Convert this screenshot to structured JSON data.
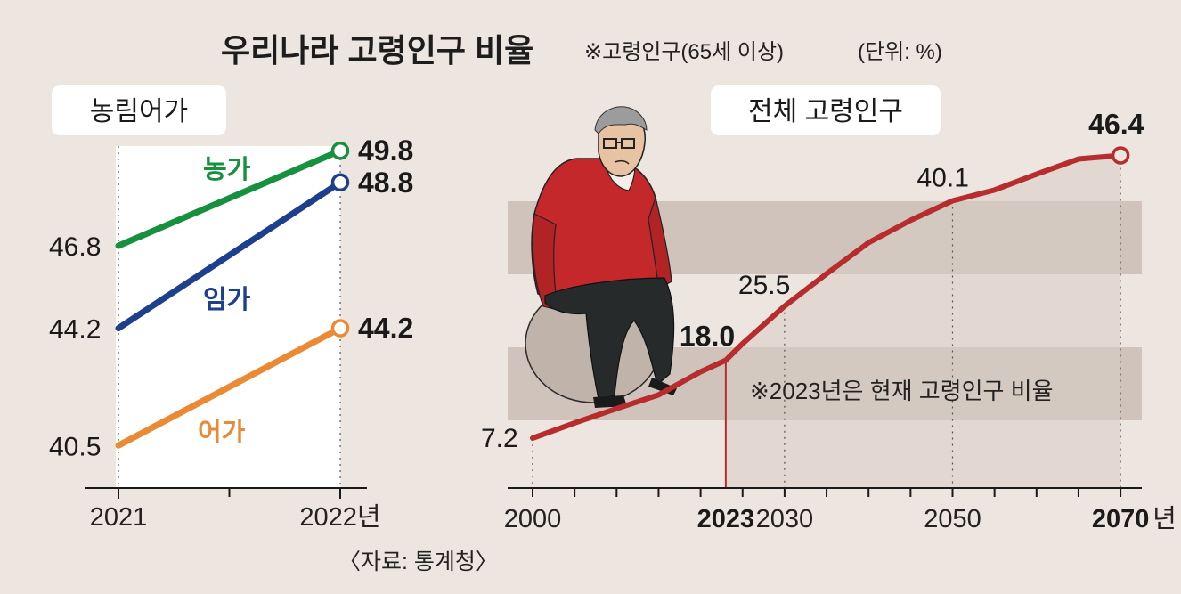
{
  "header": {
    "title": "우리나라 고령인구 비율",
    "note": "※고령인구(65세 이상)",
    "unit": "(단위: %)"
  },
  "source": "〈자료: 통계청〉",
  "colors": {
    "background": "#ede5df",
    "farm": "#17903f",
    "forest": "#1e3f8c",
    "fishery": "#ea8a35",
    "total": "#b72c2c",
    "band": "#cfc3bb"
  },
  "illustration": {
    "icon": "elderly-man-sitting-on-ball-illustration"
  },
  "chart_data": [
    {
      "type": "line",
      "title": "농림어가",
      "x": [
        "2021",
        "2022년"
      ],
      "series": [
        {
          "name": "농가",
          "values": [
            46.8,
            49.8
          ],
          "start_label": "46.8",
          "end_label": "49.8"
        },
        {
          "name": "임가",
          "values": [
            44.2,
            48.8
          ],
          "start_label": "44.2",
          "end_label": "48.8"
        },
        {
          "name": "어가",
          "values": [
            40.5,
            44.2
          ],
          "start_label": "40.5",
          "end_label": "44.2"
        }
      ]
    },
    {
      "type": "line",
      "title": "전체 고령인구",
      "x_ticks": [
        {
          "value": 2000,
          "label": "2000",
          "bold": false
        },
        {
          "value": 2023,
          "label": "2023",
          "bold": true
        },
        {
          "value": 2030,
          "label": "2030",
          "bold": false
        },
        {
          "value": 2050,
          "label": "2050",
          "bold": false
        },
        {
          "value": 2070,
          "label": "2070",
          "bold": true
        }
      ],
      "x_unit": "년",
      "series": [
        {
          "name": "전체 고령인구",
          "points": [
            {
              "x": 2000,
              "y": 7.2
            },
            {
              "x": 2005,
              "y": 9.3
            },
            {
              "x": 2010,
              "y": 11.3
            },
            {
              "x": 2015,
              "y": 13.2
            },
            {
              "x": 2020,
              "y": 16.4
            },
            {
              "x": 2023,
              "y": 18.0
            },
            {
              "x": 2025,
              "y": 20.3
            },
            {
              "x": 2030,
              "y": 25.5
            },
            {
              "x": 2035,
              "y": 30.0
            },
            {
              "x": 2040,
              "y": 34.3
            },
            {
              "x": 2045,
              "y": 37.4
            },
            {
              "x": 2050,
              "y": 40.1
            },
            {
              "x": 2055,
              "y": 41.6
            },
            {
              "x": 2060,
              "y": 43.8
            },
            {
              "x": 2065,
              "y": 45.9
            },
            {
              "x": 2070,
              "y": 46.4
            }
          ]
        }
      ],
      "labeled_points": [
        {
          "x": 2000,
          "label": "7.2"
        },
        {
          "x": 2023,
          "label": "18.0"
        },
        {
          "x": 2030,
          "label": "25.5"
        },
        {
          "x": 2050,
          "label": "40.1"
        },
        {
          "x": 2070,
          "label": "46.4"
        }
      ],
      "annotation": "※2023년은 현재 고령인구 비율",
      "grid": false
    }
  ]
}
